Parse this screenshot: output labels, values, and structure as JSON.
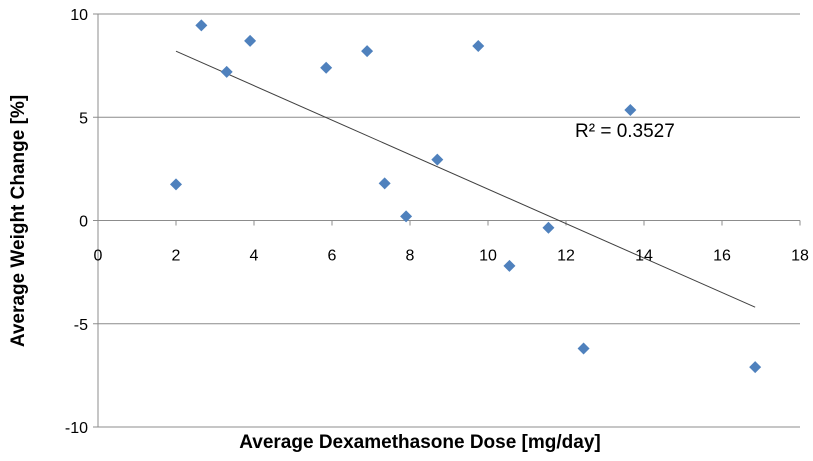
{
  "chart_data": {
    "type": "scatter",
    "title": "",
    "xlabel": "Average Dexamethasone Dose [mg/day]",
    "ylabel": "Average Weight Change [%]",
    "xlim": [
      0,
      18
    ],
    "ylim": [
      -10,
      10
    ],
    "x_ticks": [
      "0",
      "2",
      "4",
      "6",
      "8",
      "10",
      "12",
      "14",
      "16",
      "18"
    ],
    "y_ticks": [
      "-10",
      "-5",
      "0",
      "5",
      "10"
    ],
    "grid": "horizontal",
    "legend": "none",
    "marker_color": "#4F81BD",
    "trendline": {
      "type": "linear",
      "x_start": 2.0,
      "y_start": 8.2,
      "x_end": 16.85,
      "y_end": -4.2,
      "color": "#404040"
    },
    "r_squared_label": "R² = 0.3527",
    "points": [
      {
        "x": 2.0,
        "y": 1.75
      },
      {
        "x": 2.65,
        "y": 9.45
      },
      {
        "x": 3.3,
        "y": 7.2
      },
      {
        "x": 3.9,
        "y": 8.7
      },
      {
        "x": 5.85,
        "y": 7.4
      },
      {
        "x": 6.9,
        "y": 8.2
      },
      {
        "x": 7.35,
        "y": 1.8
      },
      {
        "x": 7.9,
        "y": 0.2
      },
      {
        "x": 8.7,
        "y": 2.95
      },
      {
        "x": 9.75,
        "y": 8.45
      },
      {
        "x": 10.55,
        "y": -2.2
      },
      {
        "x": 11.55,
        "y": -0.35
      },
      {
        "x": 12.45,
        "y": -6.2
      },
      {
        "x": 13.65,
        "y": 5.35
      },
      {
        "x": 16.85,
        "y": -7.1
      }
    ]
  }
}
